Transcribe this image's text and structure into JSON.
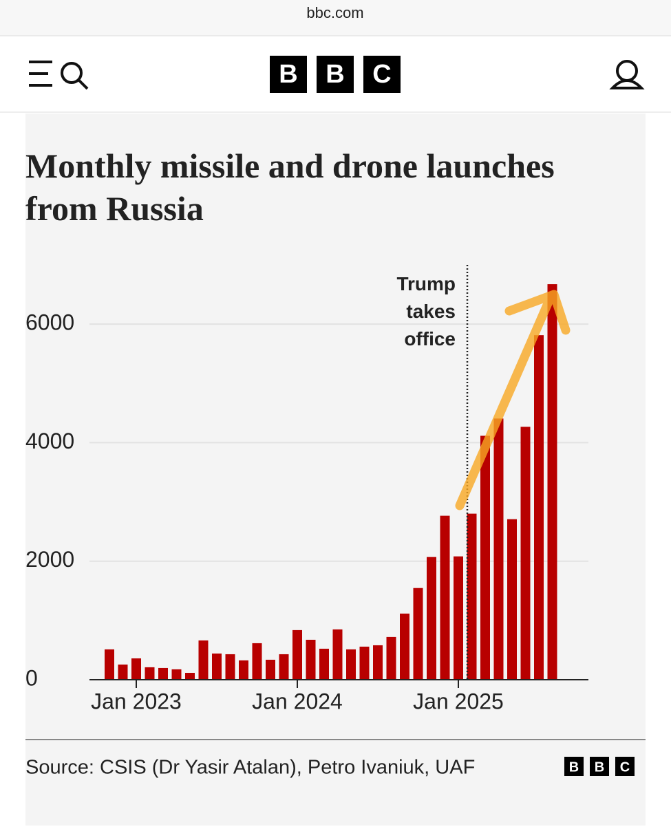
{
  "page": {
    "url": "bbc.com",
    "logo": [
      "B",
      "B",
      "C"
    ]
  },
  "chart_data": {
    "type": "bar",
    "title": "Monthly missile and drone launches from Russia",
    "categories": [
      null,
      null,
      "Jan 2023",
      null,
      null,
      null,
      null,
      null,
      null,
      null,
      null,
      null,
      null,
      null,
      "Jan 2024",
      null,
      null,
      null,
      null,
      null,
      null,
      null,
      null,
      null,
      null,
      null,
      "Jan 2025",
      null,
      null,
      null,
      null,
      null,
      null,
      null
    ],
    "values": [
      512,
      256,
      360,
      210,
      198,
      175,
      116,
      663,
      442,
      430,
      326,
      616,
      337,
      430,
      837,
      674,
      523,
      849,
      512,
      558,
      581,
      721,
      1116,
      1547,
      2070,
      2767,
      2081,
      2802,
      4116,
      4407,
      2709,
      4267,
      5814,
      6674
    ],
    "color": "#b80000",
    "ylim": [
      0,
      7000
    ],
    "yticks": [
      0,
      2000,
      4000,
      6000
    ],
    "grid": true,
    "annotation": "Trump takes office",
    "source": "Source: CSIS (Dr Yasir Atalan), Petro Ivaniuk, UAF"
  }
}
